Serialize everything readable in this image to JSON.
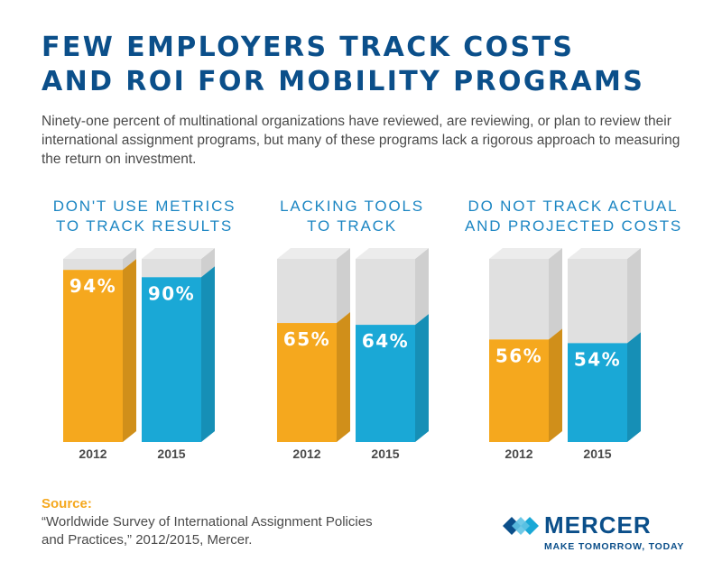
{
  "header": {
    "title_line1": "FEW EMPLOYERS TRACK COSTS",
    "title_line2": "AND ROI FOR MOBILITY PROGRAMS",
    "subtitle": "Ninety-one percent of multinational organizations have reviewed, are reviewing, or plan to review their international assignment programs, but many of these programs lack a rigorous approach to measuring the return on investment."
  },
  "colors": {
    "year_2012": "#f5a81e",
    "year_2015": "#1aa8d6",
    "empty": "#e0e0e0",
    "title": "#0b4f8a",
    "group_title": "#1c86c3"
  },
  "chart_data": [
    {
      "type": "bar",
      "title_line1": "DON'T USE METRICS",
      "title_line2": "TO TRACK RESULTS",
      "categories": [
        "2012",
        "2015"
      ],
      "values": [
        94,
        90
      ],
      "labels": [
        "94%",
        "90%"
      ],
      "ylim": [
        0,
        100
      ]
    },
    {
      "type": "bar",
      "title_line1": "LACKING TOOLS",
      "title_line2": "TO TRACK",
      "categories": [
        "2012",
        "2015"
      ],
      "values": [
        65,
        64
      ],
      "labels": [
        "65%",
        "64%"
      ],
      "ylim": [
        0,
        100
      ]
    },
    {
      "type": "bar",
      "title_line1": "DO NOT TRACK ACTUAL",
      "title_line2": "AND PROJECTED COSTS",
      "categories": [
        "2012",
        "2015"
      ],
      "values": [
        56,
        54
      ],
      "labels": [
        "56%",
        "54%"
      ],
      "ylim": [
        0,
        100
      ]
    }
  ],
  "footer": {
    "source_label": "Source:",
    "source_line1": "“Worldwide Survey of International Assignment Policies",
    "source_line2": "and Practices,” 2012/2015, Mercer.",
    "logo_word": "MERCER",
    "logo_tagline": "MAKE TOMORROW, TODAY",
    "logo_icon": "mercer-logo-icon"
  }
}
